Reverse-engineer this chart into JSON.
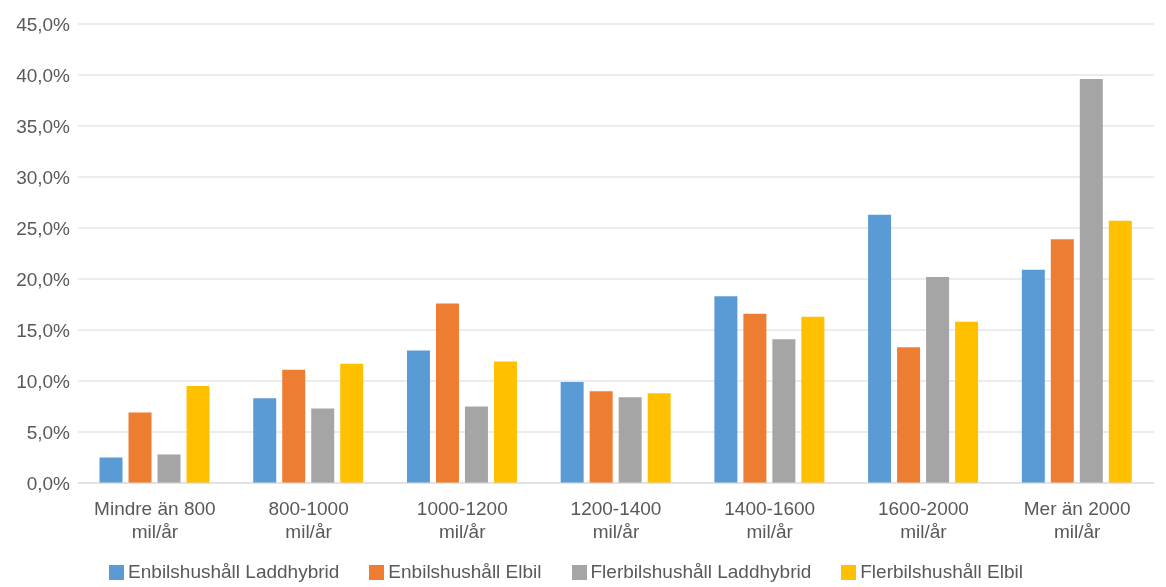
{
  "chart_data": {
    "type": "bar",
    "categories": [
      "Mindre än 800 mil/år",
      "800-1000 mil/år",
      "1000-1200 mil/år",
      "1200-1400 mil/år",
      "1400-1600 mil/år",
      "1600-2000 mil/år",
      "Mer än 2000 mil/år"
    ],
    "series": [
      {
        "name": "Enbilshushåll Laddhybrid",
        "color": "#5b9bd5",
        "values": [
          2.5,
          8.3,
          13.0,
          9.9,
          18.3,
          26.3,
          20.9
        ]
      },
      {
        "name": "Enbilshushåll Elbil",
        "color": "#ed7d31",
        "values": [
          6.9,
          11.1,
          17.6,
          9.0,
          16.6,
          13.3,
          23.9
        ]
      },
      {
        "name": "Flerbilshushåll Laddhybrid",
        "color": "#a5a5a5",
        "values": [
          2.8,
          7.3,
          7.5,
          8.4,
          14.1,
          20.2,
          39.6
        ]
      },
      {
        "name": "Flerbilshushåll Elbil",
        "color": "#ffc000",
        "values": [
          9.5,
          11.7,
          11.9,
          8.8,
          16.3,
          15.8,
          25.7
        ]
      }
    ],
    "ylim": [
      0,
      45
    ],
    "yticks": [
      {
        "value": 0,
        "label": "0,0%"
      },
      {
        "value": 5,
        "label": "5,0%"
      },
      {
        "value": 10,
        "label": "10,0%"
      },
      {
        "value": 15,
        "label": "15,0%"
      },
      {
        "value": 20,
        "label": "20,0%"
      },
      {
        "value": 25,
        "label": "25,0%"
      },
      {
        "value": 30,
        "label": "30,0%"
      },
      {
        "value": 35,
        "label": "35,0%"
      },
      {
        "value": 40,
        "label": "40,0%"
      },
      {
        "value": 45,
        "label": "45,0%"
      }
    ],
    "grid": "y",
    "legend": "bottom"
  }
}
